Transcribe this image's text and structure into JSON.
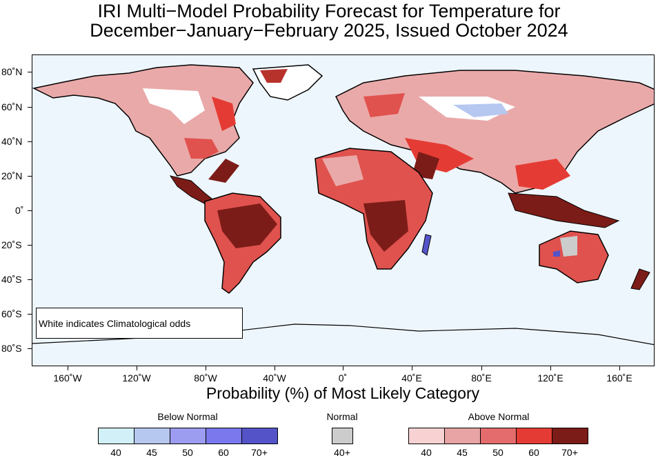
{
  "title": {
    "line1": "IRI Multi−Model Probability Forecast for Temperature for",
    "line2": "December−January−February 2025, Issued October 2024"
  },
  "map": {
    "latitude_labels": [
      "80˚N",
      "60˚N",
      "40˚N",
      "20˚N",
      "0˚",
      "20˚S",
      "40˚S",
      "60˚S",
      "80˚S"
    ],
    "longitude_labels": [
      "160˚W",
      "120˚W",
      "80˚W",
      "40˚W",
      "0˚",
      "40˚E",
      "80˚E",
      "120˚E",
      "160˚E"
    ],
    "ocean_color": "#eef6fd",
    "note": "White indicates Climatological odds"
  },
  "axis_title": "Probability (%) of Most Likely Category",
  "legend": {
    "below": {
      "title": "Below Normal",
      "labels": [
        "40",
        "45",
        "50",
        "60",
        "70+"
      ],
      "colors": [
        "#d2f0f7",
        "#b6c8f0",
        "#9c9cf0",
        "#7a78ec",
        "#5454c8"
      ]
    },
    "normal": {
      "title": "Normal",
      "labels": [
        "40+"
      ],
      "colors": [
        "#cccccc"
      ]
    },
    "above": {
      "title": "Above Normal",
      "labels": [
        "40",
        "45",
        "50",
        "60",
        "70+"
      ],
      "colors": [
        "#f8d2d2",
        "#e8a4a4",
        "#e46c6c",
        "#e43c34",
        "#7c1c18"
      ]
    }
  }
}
